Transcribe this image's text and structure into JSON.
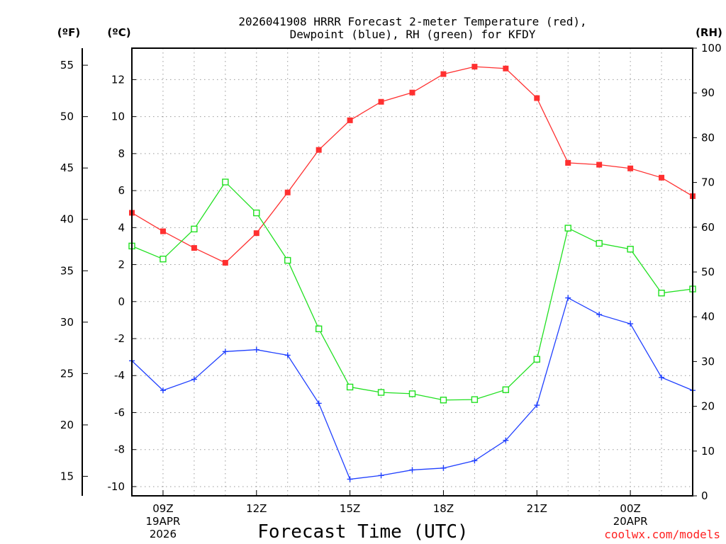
{
  "chart_data": {
    "type": "line",
    "title_lines": [
      "2026041908 HRRR Forecast 2-meter Temperature (red),",
      "Dewpoint (blue), RH (green) for KFDY"
    ],
    "unit_labels": {
      "fahrenheit": "(ºF)",
      "celsius": "(ºC)",
      "rh": "(RH)"
    },
    "xlabel": "Forecast Time (UTC)",
    "credit": "coolwx.com/models",
    "x_hours": [
      8,
      9,
      10,
      11,
      12,
      13,
      14,
      15,
      16,
      17,
      18,
      19,
      20,
      21,
      22,
      23,
      24,
      25,
      26
    ],
    "x_range": [
      8,
      26
    ],
    "x_ticks": [
      {
        "hour": 9,
        "lines": [
          "09Z",
          "19APR",
          "2026"
        ]
      },
      {
        "hour": 12,
        "lines": [
          "12Z"
        ]
      },
      {
        "hour": 15,
        "lines": [
          "15Z"
        ]
      },
      {
        "hour": 18,
        "lines": [
          "18Z"
        ]
      },
      {
        "hour": 21,
        "lines": [
          "21Z"
        ]
      },
      {
        "hour": 24,
        "lines": [
          "00Z",
          "20APR"
        ]
      }
    ],
    "axes": {
      "celsius": {
        "range": [
          -10.5,
          13.7
        ],
        "ticks": [
          -10,
          -8,
          -6,
          -4,
          -2,
          0,
          2,
          4,
          6,
          8,
          10,
          12
        ]
      },
      "fahrenheit": {
        "ticks": [
          15,
          20,
          25,
          30,
          35,
          40,
          45,
          50,
          55
        ]
      },
      "rh": {
        "range": [
          0,
          100
        ],
        "ticks": [
          0,
          10,
          20,
          30,
          40,
          50,
          60,
          70,
          80,
          90,
          100
        ]
      }
    },
    "series": [
      {
        "name": "2-meter Temperature",
        "color": "#ff3030",
        "marker": "filled-square",
        "axis": "celsius",
        "values": [
          4.8,
          3.8,
          2.9,
          2.1,
          3.7,
          5.9,
          8.2,
          9.8,
          10.8,
          11.3,
          12.3,
          12.7,
          12.6,
          11.0,
          7.5,
          7.4,
          7.2,
          6.7,
          5.7
        ]
      },
      {
        "name": "Dewpoint",
        "color": "#2040ff",
        "marker": "plus",
        "axis": "celsius",
        "values": [
          -3.2,
          -4.8,
          -4.2,
          -2.7,
          -2.6,
          -2.9,
          -5.5,
          -9.6,
          -9.4,
          -9.1,
          -9.0,
          -8.6,
          -7.5,
          -5.6,
          0.2,
          -0.7,
          -1.2,
          -4.1,
          -4.8
        ]
      },
      {
        "name": "RH",
        "color": "#20e020",
        "marker": "open-square",
        "axis": "rh",
        "values": [
          55.8,
          52.9,
          59.6,
          70.1,
          63.2,
          52.6,
          37.3,
          24.3,
          23.1,
          22.8,
          21.4,
          21.5,
          23.7,
          30.5,
          59.8,
          56.4,
          55.1,
          45.3,
          46.2
        ]
      }
    ]
  }
}
